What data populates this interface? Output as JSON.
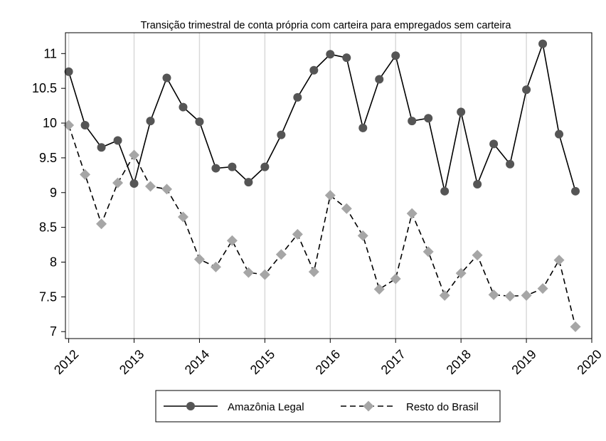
{
  "chart_data": {
    "type": "line",
    "title": "Transição trimestral de conta própria com carteira para empregados sem carteira",
    "xlabel": "",
    "ylabel": "",
    "xlim": [
      2011.95,
      2020.0
    ],
    "ylim": [
      6.9,
      11.3
    ],
    "xticks": [
      2012,
      2013,
      2014,
      2015,
      2016,
      2017,
      2018,
      2019,
      2020
    ],
    "xtick_labels": [
      "2012",
      "2013",
      "2014",
      "2015",
      "2016",
      "2017",
      "2018",
      "2019",
      "2020"
    ],
    "yticks": [
      7,
      7.5,
      8,
      8.5,
      9,
      9.5,
      10,
      10.5,
      11
    ],
    "ytick_labels": [
      "7",
      "7.5",
      "8",
      "8.5",
      "9",
      "9.5",
      "10",
      "10.5",
      "11"
    ],
    "grid": "vertical",
    "legend_position": "bottom",
    "x": [
      2012.0,
      2012.25,
      2012.5,
      2012.75,
      2013.0,
      2013.25,
      2013.5,
      2013.75,
      2014.0,
      2014.25,
      2014.5,
      2014.75,
      2015.0,
      2015.25,
      2015.5,
      2015.75,
      2016.0,
      2016.25,
      2016.5,
      2016.75,
      2017.0,
      2017.25,
      2017.5,
      2017.75,
      2018.0,
      2018.25,
      2018.5,
      2018.75,
      2019.0,
      2019.25,
      2019.5,
      2019.75
    ],
    "series": [
      {
        "name": "Amazônia Legal",
        "color": "#555555",
        "marker": "circle",
        "line_style": "solid",
        "values": [
          10.74,
          9.97,
          9.65,
          9.75,
          9.13,
          10.03,
          10.65,
          10.23,
          10.02,
          9.35,
          9.37,
          9.15,
          9.37,
          9.83,
          10.37,
          10.76,
          10.99,
          10.94,
          9.93,
          10.63,
          10.97,
          10.03,
          10.07,
          9.02,
          10.16,
          9.12,
          9.7,
          9.41,
          10.48,
          11.14,
          9.84,
          9.02
        ]
      },
      {
        "name": "Resto do Brasil",
        "color": "#a6a6a6",
        "marker": "diamond",
        "line_style": "dashed",
        "values": [
          9.97,
          9.26,
          8.55,
          9.14,
          9.54,
          9.09,
          9.05,
          8.65,
          8.04,
          7.93,
          8.31,
          7.85,
          7.82,
          8.11,
          8.4,
          7.86,
          8.96,
          8.77,
          8.38,
          7.61,
          7.76,
          8.7,
          8.15,
          7.52,
          7.84,
          8.1,
          7.53,
          7.51,
          7.52,
          7.62,
          8.03,
          7.07
        ]
      }
    ]
  }
}
